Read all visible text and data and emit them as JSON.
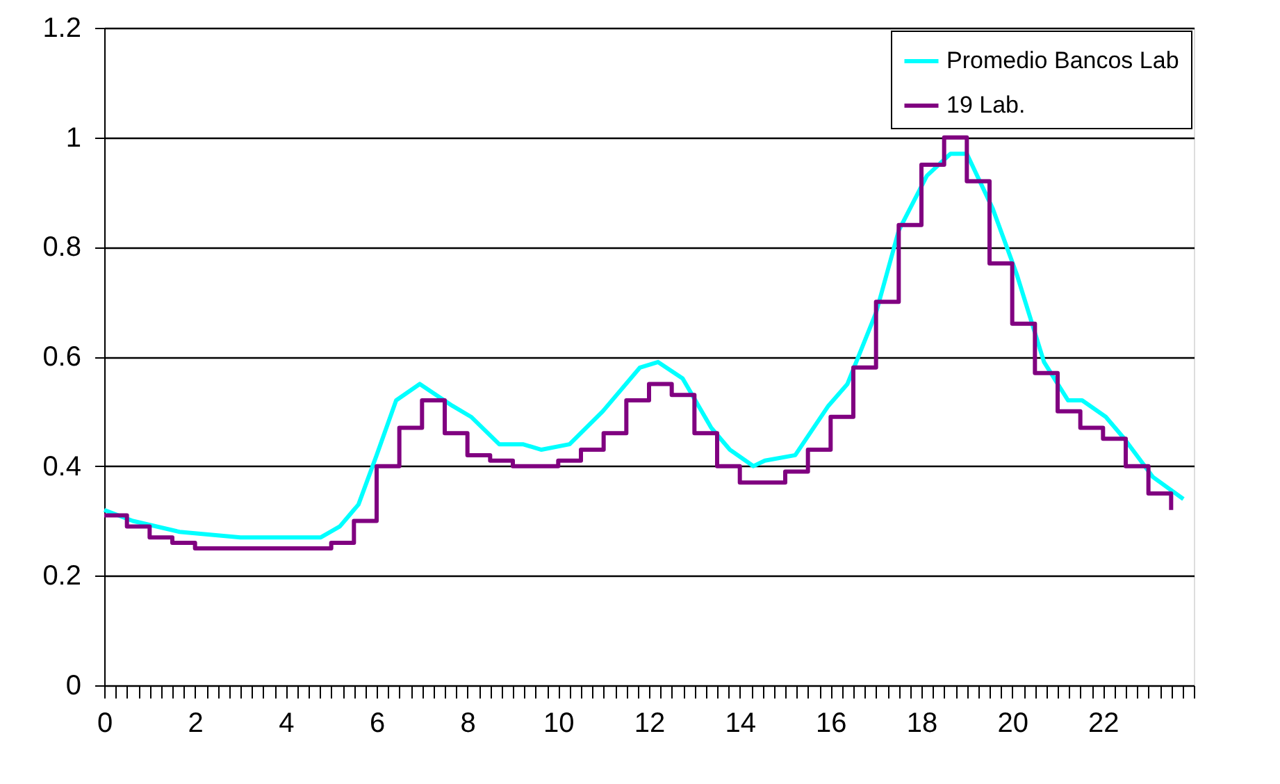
{
  "chart_data": {
    "type": "line",
    "series": [
      {
        "name": "Promedio Bancos Lab",
        "color": "#00ffff",
        "x": [
          0,
          0.63,
          1.66,
          3.0,
          4.77,
          5.19,
          5.6,
          6.0,
          6.43,
          6.95,
          7.67,
          8.08,
          8.7,
          9.22,
          9.63,
          10.25,
          10.98,
          11.8,
          12.2,
          12.74,
          13.37,
          13.78,
          14.3,
          14.55,
          15.22,
          15.95,
          16.37,
          17.0,
          17.5,
          18.12,
          18.64,
          19.0,
          19.57,
          20.1,
          20.7,
          21.23,
          21.54,
          22.06,
          22.47,
          23.1,
          23.77
        ],
        "values": [
          0.32,
          0.3,
          0.28,
          0.27,
          0.27,
          0.29,
          0.33,
          0.42,
          0.52,
          0.55,
          0.51,
          0.49,
          0.44,
          0.44,
          0.43,
          0.44,
          0.5,
          0.58,
          0.59,
          0.56,
          0.47,
          0.43,
          0.4,
          0.41,
          0.42,
          0.51,
          0.55,
          0.68,
          0.83,
          0.93,
          0.97,
          0.97,
          0.87,
          0.75,
          0.59,
          0.52,
          0.52,
          0.49,
          0.45,
          0.38,
          0.34
        ]
      },
      {
        "name": "19 Lab.",
        "color": "#800080",
        "type": "step",
        "x": [
          0,
          0.5,
          1,
          1.5,
          2,
          2.5,
          3,
          3.5,
          4,
          4.5,
          5,
          5.5,
          6,
          6.5,
          7,
          7.5,
          8,
          8.5,
          9,
          9.5,
          10,
          10.5,
          11,
          11.5,
          12,
          12.5,
          13,
          13.5,
          14,
          14.5,
          15,
          15.5,
          16,
          16.5,
          17,
          17.5,
          18,
          18.5,
          19,
          19.5,
          20,
          20.5,
          21,
          21.5,
          22,
          22.5,
          23,
          23.5
        ],
        "values": [
          0.31,
          0.29,
          0.27,
          0.26,
          0.25,
          0.25,
          0.25,
          0.25,
          0.25,
          0.25,
          0.26,
          0.3,
          0.4,
          0.47,
          0.52,
          0.46,
          0.42,
          0.41,
          0.4,
          0.4,
          0.41,
          0.43,
          0.46,
          0.52,
          0.55,
          0.53,
          0.46,
          0.4,
          0.37,
          0.37,
          0.39,
          0.43,
          0.49,
          0.58,
          0.7,
          0.84,
          0.95,
          1.0,
          0.92,
          0.77,
          0.66,
          0.57,
          0.5,
          0.47,
          0.45,
          0.4,
          0.35,
          0.32
        ]
      }
    ],
    "xlim": [
      0,
      24
    ],
    "xticks": [
      0,
      {
        "value": 0.25,
        "label": null
      },
      {
        "value": 0.5,
        "label": null
      },
      {
        "value": 0.75,
        "label": null
      },
      {
        "value": 1,
        "label": null
      },
      {
        "value": 1.25,
        "label": null
      },
      {
        "value": 1.5,
        "label": null
      },
      {
        "value": 1.75,
        "label": null
      },
      2,
      {
        "value": 2.25,
        "label": null
      },
      {
        "value": 2.5,
        "label": null
      },
      {
        "value": 2.75,
        "label": null
      },
      {
        "value": 3,
        "label": null
      },
      {
        "value": 3.25,
        "label": null
      },
      {
        "value": 3.5,
        "label": null
      },
      {
        "value": 3.75,
        "label": null
      },
      4,
      {
        "value": 4.25,
        "label": null
      },
      {
        "value": 4.5,
        "label": null
      },
      {
        "value": 4.75,
        "label": null
      },
      {
        "value": 5,
        "label": null
      },
      {
        "value": 5.25,
        "label": null
      },
      {
        "value": 5.5,
        "label": null
      },
      {
        "value": 5.75,
        "label": null
      },
      6,
      {
        "value": 6.25,
        "label": null
      },
      {
        "value": 6.5,
        "label": null
      },
      {
        "value": 6.75,
        "label": null
      },
      {
        "value": 7,
        "label": null
      },
      {
        "value": 7.25,
        "label": null
      },
      {
        "value": 7.5,
        "label": null
      },
      {
        "value": 7.75,
        "label": null
      },
      8,
      {
        "value": 8.25,
        "label": null
      },
      {
        "value": 8.5,
        "label": null
      },
      {
        "value": 8.75,
        "label": null
      },
      {
        "value": 9,
        "label": null
      },
      {
        "value": 9.25,
        "label": null
      },
      {
        "value": 9.5,
        "label": null
      },
      {
        "value": 9.75,
        "label": null
      },
      10,
      {
        "value": 10.25,
        "label": null
      },
      {
        "value": 10.5,
        "label": null
      },
      {
        "value": 10.75,
        "label": null
      },
      {
        "value": 11,
        "label": null
      },
      {
        "value": 11.25,
        "label": null
      },
      {
        "value": 11.5,
        "label": null
      },
      {
        "value": 11.75,
        "label": null
      },
      12,
      {
        "value": 12.25,
        "label": null
      },
      {
        "value": 12.5,
        "label": null
      },
      {
        "value": 12.75,
        "label": null
      },
      {
        "value": 13,
        "label": null
      },
      {
        "value": 13.25,
        "label": null
      },
      {
        "value": 13.5,
        "label": null
      },
      {
        "value": 13.75,
        "label": null
      },
      14,
      {
        "value": 14.25,
        "label": null
      },
      {
        "value": 14.5,
        "label": null
      },
      {
        "value": 14.75,
        "label": null
      },
      {
        "value": 15,
        "label": null
      },
      {
        "value": 15.25,
        "label": null
      },
      {
        "value": 15.5,
        "label": null
      },
      {
        "value": 15.75,
        "label": null
      },
      16,
      {
        "value": 16.25,
        "label": null
      },
      {
        "value": 16.5,
        "label": null
      },
      {
        "value": 16.75,
        "label": null
      },
      {
        "value": 17,
        "label": null
      },
      {
        "value": 17.25,
        "label": null
      },
      {
        "value": 17.5,
        "label": null
      },
      {
        "value": 17.75,
        "label": null
      },
      18,
      {
        "value": 18.25,
        "label": null
      },
      {
        "value": 18.5,
        "label": null
      },
      {
        "value": 18.75,
        "label": null
      },
      {
        "value": 19,
        "label": null
      },
      {
        "value": 19.25,
        "label": null
      },
      {
        "value": 19.5,
        "label": null
      },
      {
        "value": 19.75,
        "label": null
      },
      20,
      {
        "value": 20.25,
        "label": null
      },
      {
        "value": 20.5,
        "label": null
      },
      {
        "value": 20.75,
        "label": null
      },
      {
        "value": 21,
        "label": null
      },
      {
        "value": 21.25,
        "label": null
      },
      {
        "value": 21.5,
        "label": null
      },
      {
        "value": 21.75,
        "label": null
      },
      22,
      {
        "value": 22.25,
        "label": null
      },
      {
        "value": 22.5,
        "label": null
      },
      {
        "value": 22.75,
        "label": null
      },
      {
        "value": 23,
        "label": null
      },
      {
        "value": 23.25,
        "label": null
      },
      {
        "value": 23.5,
        "label": null
      },
      {
        "value": 23.75,
        "label": null
      },
      {
        "value": 24,
        "label": null
      }
    ],
    "ylim": [
      0,
      1.2
    ],
    "yticks": [
      0,
      0.2,
      0.4,
      0.6,
      0.8,
      1,
      1.2
    ],
    "grid": "y",
    "legend": "top right",
    "marker": "none",
    "line_style": "solid"
  }
}
